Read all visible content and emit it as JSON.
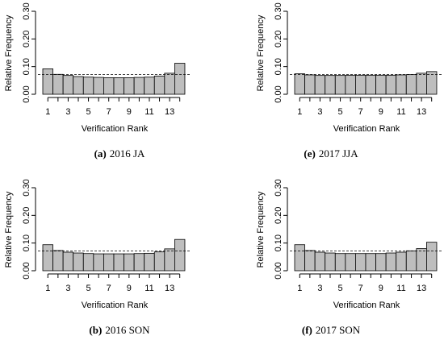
{
  "chart_data": [
    {
      "type": "bar",
      "panel_label": "(a)",
      "caption": "2016 JA",
      "xlabel": "Verification Rank",
      "ylabel": "Relative Frequency",
      "ylim": [
        0,
        0.3
      ],
      "yticks": [
        "0.00",
        "0.10",
        "0.20",
        "0.30"
      ],
      "xticks": [
        "1",
        "3",
        "5",
        "7",
        "9",
        "11",
        "13"
      ],
      "categories": [
        1,
        2,
        3,
        4,
        5,
        6,
        7,
        8,
        9,
        10,
        11,
        12,
        13,
        14
      ],
      "values": [
        0.092,
        0.072,
        0.068,
        0.064,
        0.062,
        0.061,
        0.06,
        0.06,
        0.06,
        0.061,
        0.062,
        0.066,
        0.076,
        0.112
      ],
      "reference_line": 0.0714,
      "grid": false
    },
    {
      "type": "bar",
      "panel_label": "(e)",
      "caption": "2017 JJA",
      "xlabel": "Verification Rank",
      "ylabel": "Relative Frequency",
      "ylim": [
        0,
        0.3
      ],
      "yticks": [
        "0.00",
        "0.10",
        "0.20",
        "0.30"
      ],
      "xticks": [
        "1",
        "3",
        "5",
        "7",
        "9",
        "11",
        "13"
      ],
      "categories": [
        1,
        2,
        3,
        4,
        5,
        6,
        7,
        8,
        9,
        10,
        11,
        12,
        13,
        14
      ],
      "values": [
        0.074,
        0.07,
        0.068,
        0.068,
        0.068,
        0.069,
        0.069,
        0.069,
        0.069,
        0.069,
        0.07,
        0.071,
        0.076,
        0.082
      ],
      "reference_line": 0.0714,
      "grid": false
    },
    {
      "type": "bar",
      "panel_label": "(b)",
      "caption": "2016 SON",
      "xlabel": "Verification Rank",
      "ylabel": "Relative Frequency",
      "ylim": [
        0,
        0.3
      ],
      "yticks": [
        "0.00",
        "0.10",
        "0.20",
        "0.30"
      ],
      "xticks": [
        "1",
        "3",
        "5",
        "7",
        "9",
        "11",
        "13"
      ],
      "categories": [
        1,
        2,
        3,
        4,
        5,
        6,
        7,
        8,
        9,
        10,
        11,
        12,
        13,
        14
      ],
      "values": [
        0.094,
        0.073,
        0.067,
        0.064,
        0.062,
        0.061,
        0.061,
        0.061,
        0.061,
        0.062,
        0.063,
        0.068,
        0.079,
        0.113
      ],
      "reference_line": 0.0714,
      "grid": false
    },
    {
      "type": "bar",
      "panel_label": "(f)",
      "caption": "2017 SON",
      "xlabel": "Verification Rank",
      "ylabel": "Relative Frequency",
      "ylim": [
        0,
        0.3
      ],
      "yticks": [
        "0.00",
        "0.10",
        "0.20",
        "0.30"
      ],
      "xticks": [
        "1",
        "3",
        "5",
        "7",
        "9",
        "11",
        "13"
      ],
      "categories": [
        1,
        2,
        3,
        4,
        5,
        6,
        7,
        8,
        9,
        10,
        11,
        12,
        13,
        14
      ],
      "values": [
        0.094,
        0.073,
        0.067,
        0.064,
        0.062,
        0.062,
        0.062,
        0.062,
        0.062,
        0.064,
        0.067,
        0.072,
        0.08,
        0.103
      ],
      "reference_line": 0.0714,
      "grid": false
    }
  ],
  "colors": {
    "bar_fill": "#bebebe",
    "bar_stroke": "#000000",
    "reference_line": "#000000"
  }
}
